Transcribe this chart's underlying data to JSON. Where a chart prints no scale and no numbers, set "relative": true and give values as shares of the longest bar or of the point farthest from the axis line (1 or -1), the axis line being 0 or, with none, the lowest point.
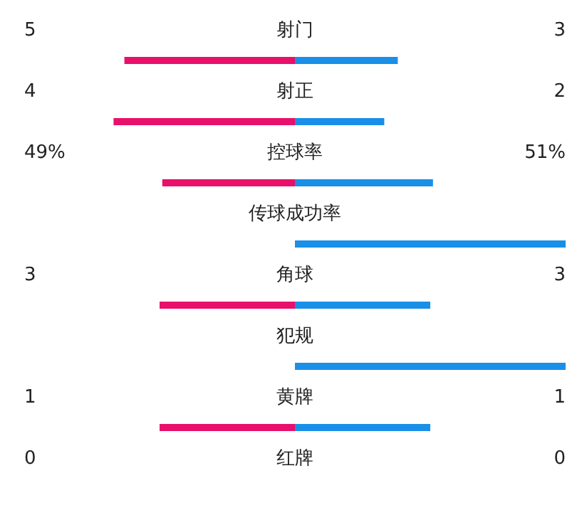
{
  "chart_data": {
    "type": "bar",
    "orientation": "horizontal",
    "relative": true,
    "stacked": true,
    "categories": [
      "射门",
      "射正",
      "控球率",
      "传球成功率",
      "角球",
      "犯规",
      "黄牌",
      "红牌"
    ],
    "series": [
      {
        "color": "#e8106b",
        "values": [
          -0.63,
          -0.67,
          -0.49,
          0,
          -0.5,
          0,
          -0.5,
          0
        ]
      },
      {
        "color": "#1a8fe8",
        "values": [
          0.38,
          0.33,
          0.51,
          1,
          0.5,
          1,
          0.5,
          0
        ]
      }
    ],
    "annotations": [
      "5",
      "3",
      "4",
      "2",
      "49%",
      "51%",
      "3",
      "3",
      "1",
      "1",
      "0",
      "0"
    ]
  }
}
